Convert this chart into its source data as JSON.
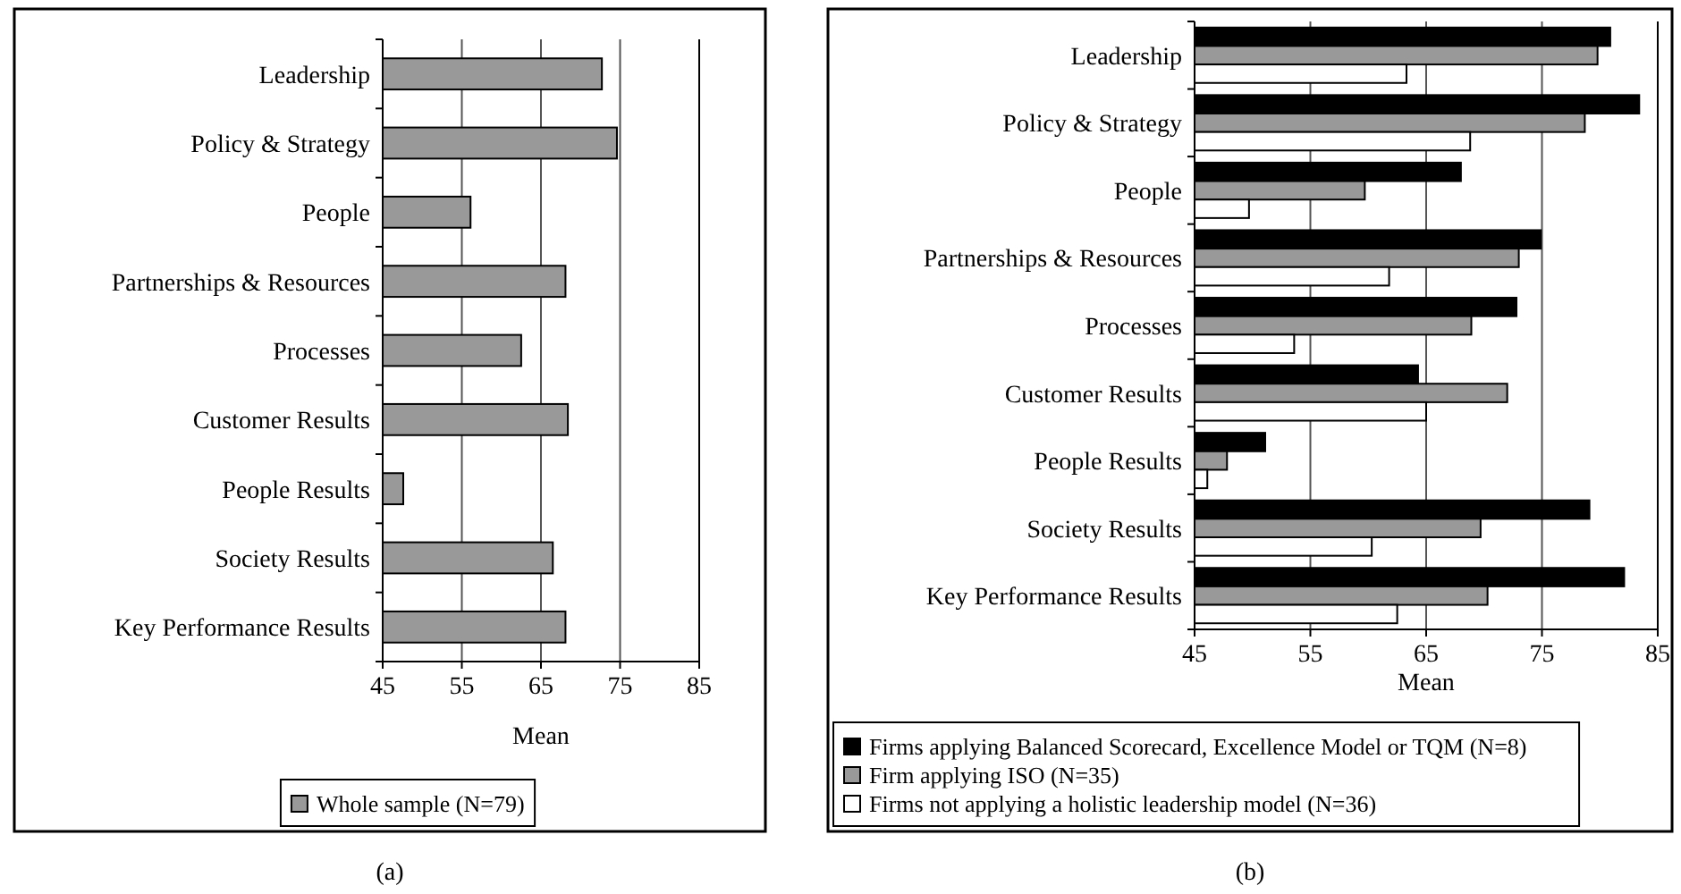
{
  "chart_data": [
    {
      "type": "bar",
      "orientation": "horizontal",
      "categories": [
        "Leadership",
        "Policy & Strategy",
        "People",
        "Partnerships & Resources",
        "Processes",
        "Customer Results",
        "People Results",
        "Society Results",
        "Key Performance Results"
      ],
      "series": [
        {
          "name": "Whole sample (N=79)",
          "color": "#999999",
          "values": [
            72.7,
            74.6,
            56.1,
            68.1,
            62.5,
            68.4,
            47.6,
            66.5,
            68.1
          ]
        }
      ],
      "xlabel": "Mean",
      "xlim": [
        45,
        85
      ],
      "xticks": [
        45,
        55,
        65,
        75,
        85
      ],
      "grid": "x",
      "legend": "bottom",
      "annotations": [
        "(a)"
      ]
    },
    {
      "type": "bar",
      "orientation": "horizontal",
      "categories": [
        "Leadership",
        "Policy & Strategy",
        "People",
        "Partnerships & Resources",
        "Processes",
        "Customer Results",
        "People Results",
        "Society Results",
        "Key Performance Results"
      ],
      "series": [
        {
          "name": "Firms applying Balanced Scorecard, Excellence Model or TQM (N=8)",
          "color": "#000000",
          "values": [
            80.9,
            83.4,
            68.0,
            74.9,
            72.8,
            64.3,
            51.1,
            79.1,
            82.1
          ]
        },
        {
          "name": "Firm applying ISO (N=35)",
          "color": "#999999",
          "values": [
            79.8,
            78.7,
            59.7,
            73.0,
            68.9,
            72.0,
            47.8,
            69.7,
            70.3
          ]
        },
        {
          "name": "Firms not applying a holistic leadership model (N=36)",
          "color": "#ffffff",
          "values": [
            63.3,
            68.8,
            49.7,
            61.8,
            53.6,
            65.0,
            46.1,
            60.3,
            62.5
          ]
        }
      ],
      "xlabel": "Mean",
      "xlim": [
        45,
        85
      ],
      "xticks": [
        45,
        55,
        65,
        75,
        85
      ],
      "grid": "x",
      "legend": "bottom",
      "annotations": [
        "(b)"
      ]
    }
  ]
}
